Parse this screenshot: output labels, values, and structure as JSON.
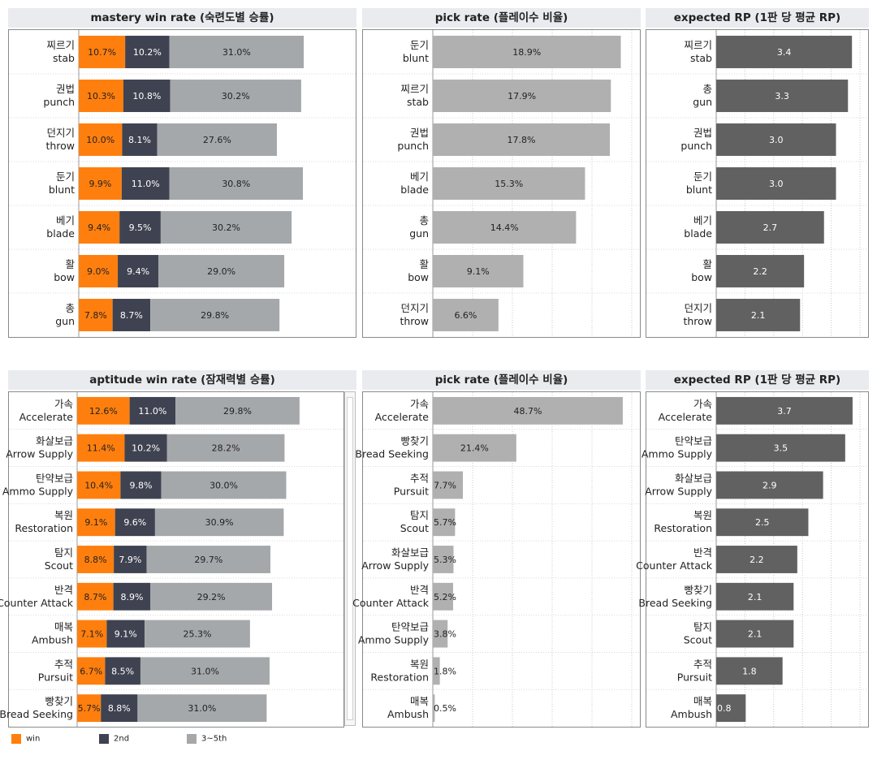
{
  "colors": {
    "win": "#ff7f0e",
    "second": "#3f4351",
    "rest": "#a5a8ab",
    "pick": "#b0b0b0",
    "rp": "#616161"
  },
  "legend": [
    {
      "key": "win",
      "label": "win"
    },
    {
      "key": "second",
      "label": "2nd"
    },
    {
      "key": "rest",
      "label": "3~5th"
    }
  ],
  "chart_data": [
    {
      "id": "mastery-win",
      "type": "bar",
      "stacked": true,
      "title": "mastery win rate (숙련도별 승률)",
      "categories": [
        [
          "찌르기",
          "stab"
        ],
        [
          "권법",
          "punch"
        ],
        [
          "던지기",
          "throw"
        ],
        [
          "둔기",
          "blunt"
        ],
        [
          "베기",
          "blade"
        ],
        [
          "활",
          "bow"
        ],
        [
          "총",
          "gun"
        ]
      ],
      "series": [
        {
          "name": "win",
          "values": [
            10.7,
            10.3,
            10.0,
            9.9,
            9.4,
            9.0,
            7.8
          ],
          "labels": [
            "10.7%",
            "10.3%",
            "10.0%",
            "9.9%",
            "9.4%",
            "9.0%",
            "7.8%"
          ]
        },
        {
          "name": "2nd",
          "values": [
            10.2,
            10.8,
            8.1,
            11.0,
            9.5,
            9.4,
            8.7
          ],
          "labels": [
            "10.2%",
            "10.8%",
            "8.1%",
            "11.0%",
            "9.5%",
            "9.4%",
            "8.7%"
          ]
        },
        {
          "name": "3~5th",
          "values": [
            31.0,
            30.2,
            27.6,
            30.8,
            30.2,
            29.0,
            29.8
          ],
          "labels": [
            "31.0%",
            "30.2%",
            "27.6%",
            "30.8%",
            "30.2%",
            "29.0%",
            "29.8%"
          ]
        }
      ],
      "xlim": [
        0,
        62
      ]
    },
    {
      "id": "mastery-pick",
      "type": "bar",
      "title": "pick rate (플레이수 비율)",
      "categories": [
        [
          "둔기",
          "blunt"
        ],
        [
          "찌르기",
          "stab"
        ],
        [
          "권법",
          "punch"
        ],
        [
          "베기",
          "blade"
        ],
        [
          "총",
          "gun"
        ],
        [
          "활",
          "bow"
        ],
        [
          "던지기",
          "throw"
        ]
      ],
      "values": [
        18.9,
        17.9,
        17.8,
        15.3,
        14.4,
        9.1,
        6.6
      ],
      "labels": [
        "18.9%",
        "17.9%",
        "17.8%",
        "15.3%",
        "14.4%",
        "9.1%",
        "6.6%"
      ],
      "xlim": [
        0,
        20
      ]
    },
    {
      "id": "mastery-rp",
      "type": "bar",
      "title": "expected RP (1판 당 평균 RP)",
      "categories": [
        [
          "찌르기",
          "stab"
        ],
        [
          "총",
          "gun"
        ],
        [
          "권법",
          "punch"
        ],
        [
          "둔기",
          "blunt"
        ],
        [
          "베기",
          "blade"
        ],
        [
          "활",
          "bow"
        ],
        [
          "던지기",
          "throw"
        ]
      ],
      "values": [
        3.4,
        3.3,
        3.0,
        3.0,
        2.7,
        2.2,
        2.1
      ],
      "labels": [
        "3.4",
        "3.3",
        "3.0",
        "3.0",
        "2.7",
        "2.2",
        "2.1"
      ],
      "xlim": [
        0,
        3.6
      ]
    },
    {
      "id": "aptitude-win",
      "type": "bar",
      "stacked": true,
      "title": "aptitude win rate (잠재력별 승률)",
      "categories": [
        [
          "가속",
          "Accelerate"
        ],
        [
          "화살보급",
          "Arrow Supply"
        ],
        [
          "탄약보급",
          "Ammo Supply"
        ],
        [
          "복원",
          "Restoration"
        ],
        [
          "탐지",
          "Scout"
        ],
        [
          "반격",
          "Counter Attack"
        ],
        [
          "매복",
          "Ambush"
        ],
        [
          "추적",
          "Pursuit"
        ],
        [
          "빵찾기",
          "Bread Seeking"
        ]
      ],
      "series": [
        {
          "name": "win",
          "values": [
            12.6,
            11.4,
            10.4,
            9.1,
            8.8,
            8.7,
            7.1,
            6.7,
            5.7
          ],
          "labels": [
            "12.6%",
            "11.4%",
            "10.4%",
            "9.1%",
            "8.8%",
            "8.7%",
            "7.1%",
            "6.7%",
            "5.7%"
          ]
        },
        {
          "name": "2nd",
          "values": [
            11.0,
            10.2,
            9.8,
            9.6,
            7.9,
            8.9,
            9.1,
            8.5,
            8.8
          ],
          "labels": [
            "11.0%",
            "10.2%",
            "9.8%",
            "9.6%",
            "7.9%",
            "8.9%",
            "9.1%",
            "8.5%",
            "8.8%"
          ]
        },
        {
          "name": "3~5th",
          "values": [
            29.8,
            28.2,
            30.0,
            30.9,
            29.7,
            29.2,
            25.3,
            31.0,
            31.0
          ],
          "labels": [
            "29.8%",
            "28.2%",
            "30.0%",
            "30.9%",
            "29.7%",
            "29.2%",
            "25.3%",
            "31.0%",
            "31.0%"
          ]
        }
      ],
      "xlim": [
        0,
        62
      ]
    },
    {
      "id": "aptitude-pick",
      "type": "bar",
      "title": "pick rate (플레이수 비율)",
      "categories": [
        [
          "가속",
          "Accelerate"
        ],
        [
          "빵찾기",
          "Bread Seeking"
        ],
        [
          "추적",
          "Pursuit"
        ],
        [
          "탐지",
          "Scout"
        ],
        [
          "화살보급",
          "Arrow Supply"
        ],
        [
          "반격",
          "Counter Attack"
        ],
        [
          "탄약보급",
          "Ammo Supply"
        ],
        [
          "복원",
          "Restoration"
        ],
        [
          "매복",
          "Ambush"
        ]
      ],
      "values": [
        48.7,
        21.4,
        7.7,
        5.7,
        5.3,
        5.2,
        3.8,
        1.8,
        0.5
      ],
      "labels": [
        "48.7%",
        "21.4%",
        "7.7%",
        "5.7%",
        "5.3%",
        "5.2%",
        "3.8%",
        "1.8%",
        "0.5%"
      ],
      "xlim": [
        0,
        51
      ]
    },
    {
      "id": "aptitude-rp",
      "type": "bar",
      "title": "expected RP (1판 당 평균 RP)",
      "categories": [
        [
          "가속",
          "Accelerate"
        ],
        [
          "탄약보급",
          "Ammo Supply"
        ],
        [
          "화살보급",
          "Arrow Supply"
        ],
        [
          "복원",
          "Restoration"
        ],
        [
          "반격",
          "Counter Attack"
        ],
        [
          "빵찾기",
          "Bread Seeking"
        ],
        [
          "탐지",
          "Scout"
        ],
        [
          "추적",
          "Pursuit"
        ],
        [
          "매복",
          "Ambush"
        ]
      ],
      "values": [
        3.7,
        3.5,
        2.9,
        2.5,
        2.2,
        2.1,
        2.1,
        1.8,
        0.8
      ],
      "labels": [
        "3.7",
        "3.5",
        "2.9",
        "2.5",
        "2.2",
        "2.1",
        "2.1",
        "1.8",
        "0.8"
      ],
      "xlim": [
        0,
        3.9
      ]
    }
  ]
}
